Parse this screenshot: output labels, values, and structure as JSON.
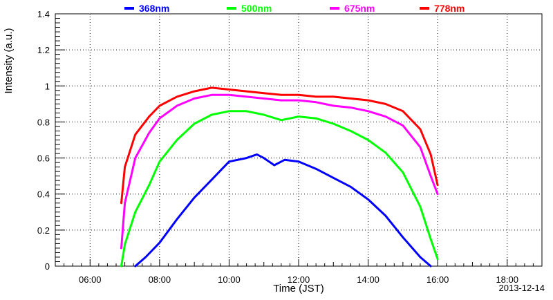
{
  "chart_data": {
    "type": "line",
    "xlabel": "Time (JST)",
    "ylabel": "Intensity (a.u.)",
    "date_label": "2013-12-14",
    "xlim": [
      5,
      19
    ],
    "ylim": [
      0,
      1.4
    ],
    "x_ticks": [
      {
        "value": 6,
        "label": "06:00"
      },
      {
        "value": 8,
        "label": "08:00"
      },
      {
        "value": 10,
        "label": "10:00"
      },
      {
        "value": 12,
        "label": "12:00"
      },
      {
        "value": 14,
        "label": "14:00"
      },
      {
        "value": 16,
        "label": "16:00"
      },
      {
        "value": 18,
        "label": "18:00"
      }
    ],
    "y_ticks": [
      {
        "value": 0,
        "label": "0"
      },
      {
        "value": 0.2,
        "label": "0.2"
      },
      {
        "value": 0.4,
        "label": "0.4"
      },
      {
        "value": 0.6,
        "label": "0.6"
      },
      {
        "value": 0.8,
        "label": "0.8"
      },
      {
        "value": 1.0,
        "label": "1"
      },
      {
        "value": 1.2,
        "label": "1.2"
      },
      {
        "value": 1.4,
        "label": "1.4"
      }
    ],
    "grid": true,
    "legend_position": "top",
    "series": [
      {
        "name": "368nm",
        "color": "#0000ff",
        "x": [
          7.3,
          7.6,
          8.0,
          8.5,
          9.0,
          9.5,
          10.0,
          10.5,
          10.8,
          11.0,
          11.3,
          11.6,
          12.0,
          12.5,
          13.0,
          13.5,
          14.0,
          14.5,
          15.0,
          15.5,
          15.8
        ],
        "y": [
          0.0,
          0.05,
          0.13,
          0.26,
          0.38,
          0.48,
          0.58,
          0.6,
          0.62,
          0.6,
          0.56,
          0.59,
          0.58,
          0.54,
          0.49,
          0.44,
          0.37,
          0.28,
          0.16,
          0.05,
          0.0
        ]
      },
      {
        "name": "500nm",
        "color": "#00ff00",
        "x": [
          6.9,
          7.0,
          7.3,
          7.7,
          8.0,
          8.5,
          9.0,
          9.5,
          10.0,
          10.5,
          11.0,
          11.5,
          12.0,
          12.5,
          13.0,
          13.5,
          14.0,
          14.5,
          15.0,
          15.5,
          15.8,
          16.0
        ],
        "y": [
          0.0,
          0.12,
          0.3,
          0.45,
          0.58,
          0.7,
          0.79,
          0.84,
          0.86,
          0.86,
          0.84,
          0.81,
          0.83,
          0.82,
          0.79,
          0.75,
          0.7,
          0.63,
          0.52,
          0.33,
          0.15,
          0.04
        ]
      },
      {
        "name": "675nm",
        "color": "#ff00ff",
        "x": [
          6.9,
          7.0,
          7.3,
          7.7,
          8.0,
          8.5,
          9.0,
          9.5,
          10.0,
          10.5,
          11.0,
          11.5,
          12.0,
          12.5,
          13.0,
          13.5,
          14.0,
          14.5,
          15.0,
          15.5,
          15.8,
          16.0
        ],
        "y": [
          0.1,
          0.35,
          0.6,
          0.74,
          0.82,
          0.89,
          0.93,
          0.95,
          0.95,
          0.94,
          0.93,
          0.92,
          0.92,
          0.91,
          0.89,
          0.88,
          0.86,
          0.83,
          0.78,
          0.66,
          0.5,
          0.4
        ]
      },
      {
        "name": "778nm",
        "color": "#ff0000",
        "x": [
          6.9,
          7.0,
          7.3,
          7.7,
          8.0,
          8.5,
          9.0,
          9.5,
          10.0,
          10.5,
          11.0,
          11.5,
          12.0,
          12.5,
          13.0,
          13.5,
          14.0,
          14.5,
          15.0,
          15.5,
          15.8,
          16.0
        ],
        "y": [
          0.35,
          0.55,
          0.73,
          0.83,
          0.89,
          0.94,
          0.97,
          0.99,
          0.98,
          0.97,
          0.96,
          0.95,
          0.95,
          0.94,
          0.94,
          0.93,
          0.92,
          0.9,
          0.86,
          0.76,
          0.62,
          0.45
        ]
      }
    ]
  }
}
